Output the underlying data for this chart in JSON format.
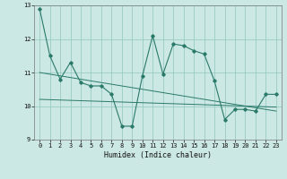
{
  "title": "",
  "xlabel": "Humidex (Indice chaleur)",
  "ylabel": "",
  "background_color": "#cce8e4",
  "grid_color": "#99ccc4",
  "line_color": "#2a7a6a",
  "xlim": [
    -0.5,
    23.5
  ],
  "ylim": [
    9,
    13
  ],
  "yticks": [
    9,
    10,
    11,
    12,
    13
  ],
  "xticks": [
    0,
    1,
    2,
    3,
    4,
    5,
    6,
    7,
    8,
    9,
    10,
    11,
    12,
    13,
    14,
    15,
    16,
    17,
    18,
    19,
    20,
    21,
    22,
    23
  ],
  "x_data": [
    0,
    1,
    2,
    3,
    4,
    5,
    6,
    7,
    8,
    9,
    10,
    11,
    12,
    13,
    14,
    15,
    16,
    17,
    18,
    19,
    20,
    21,
    22,
    23
  ],
  "y_main": [
    12.9,
    11.5,
    10.8,
    11.3,
    10.7,
    10.6,
    10.6,
    10.35,
    9.4,
    9.4,
    10.9,
    12.1,
    10.95,
    11.85,
    11.8,
    11.65,
    11.55,
    10.75,
    9.6,
    9.9,
    9.9,
    9.85,
    10.35,
    10.35
  ],
  "y_trend1": [
    11.0,
    10.95,
    10.9,
    10.85,
    10.8,
    10.75,
    10.7,
    10.65,
    10.6,
    10.55,
    10.5,
    10.45,
    10.4,
    10.35,
    10.3,
    10.25,
    10.2,
    10.15,
    10.1,
    10.05,
    10.0,
    9.95,
    9.9,
    9.85
  ],
  "y_trend2": [
    10.2,
    10.19,
    10.18,
    10.17,
    10.16,
    10.15,
    10.14,
    10.13,
    10.12,
    10.11,
    10.1,
    10.09,
    10.08,
    10.07,
    10.06,
    10.05,
    10.04,
    10.03,
    10.02,
    10.01,
    10.0,
    9.99,
    9.98,
    9.97
  ]
}
